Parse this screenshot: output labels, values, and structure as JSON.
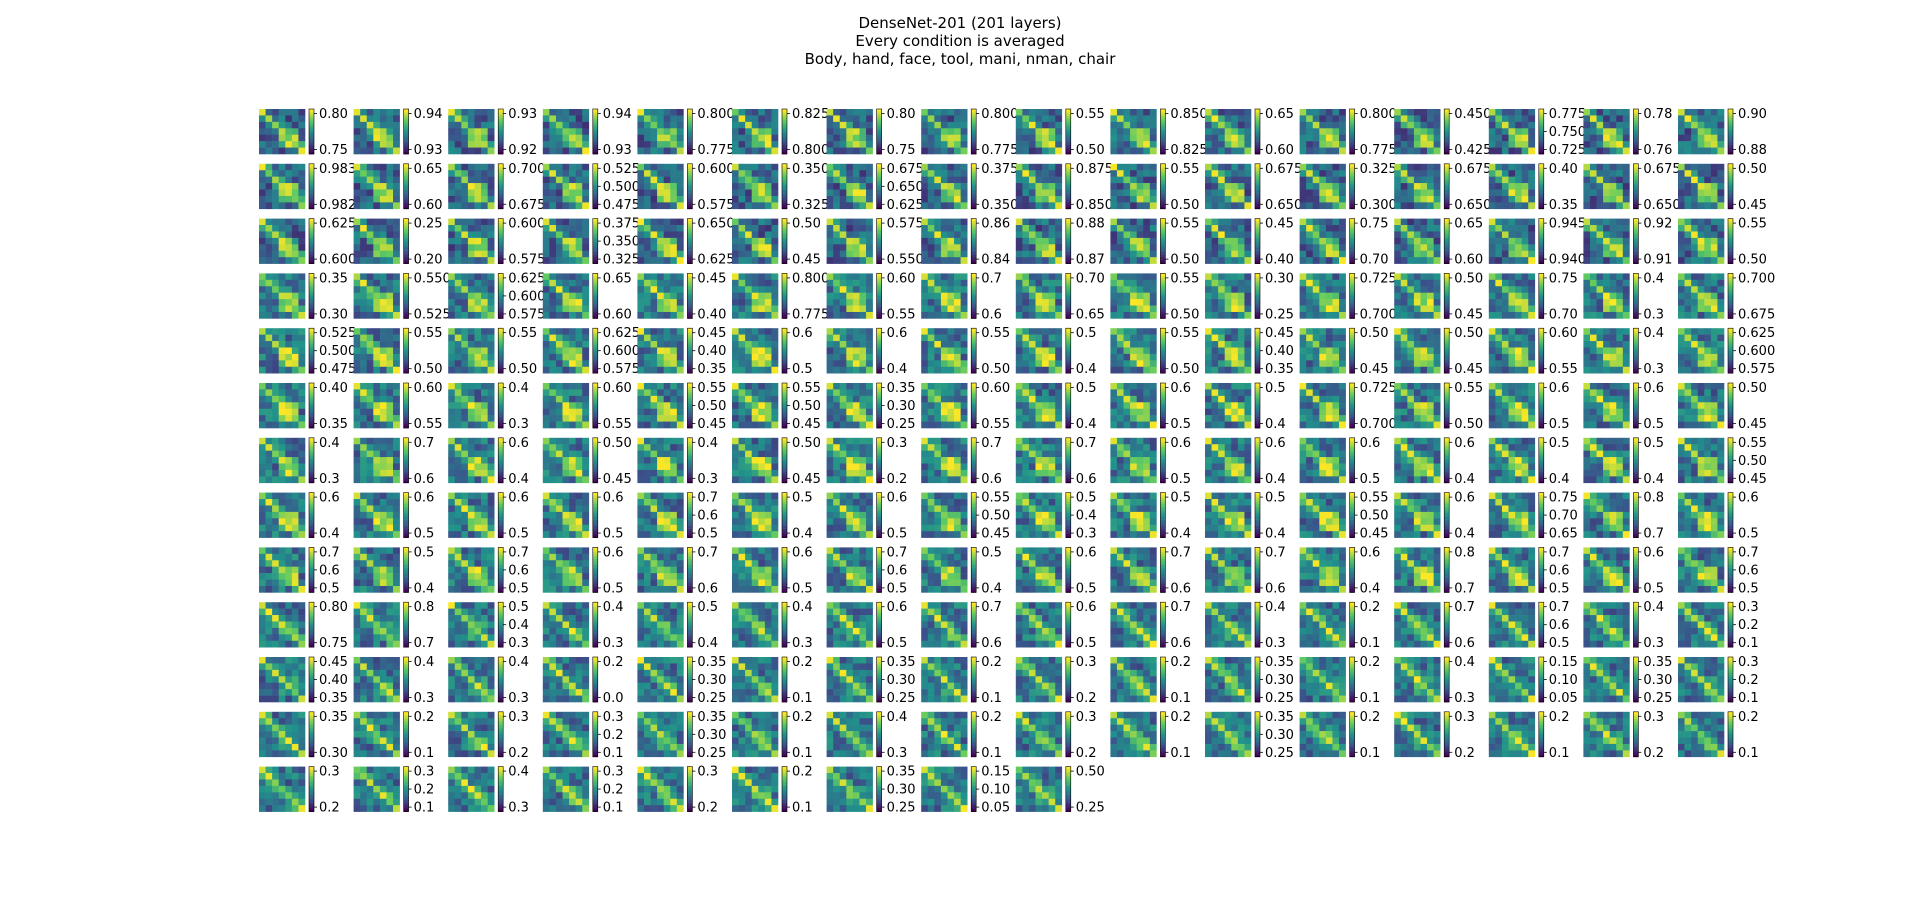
{
  "title_lines": [
    "DenseNet-201 (201 layers)",
    "Every condition is averaged",
    "Body, hand, face, tool, mani, nman, chair"
  ],
  "chart_data": {
    "type": "heatmap",
    "description_counts": {
      "rows": 13,
      "cols": 16,
      "panels": 201
    },
    "matrix_size": 7,
    "conditions": [
      "Body",
      "hand",
      "face",
      "tool",
      "mani",
      "nman",
      "chair"
    ],
    "colormap": [
      "#440154",
      "#3b528b",
      "#21918c",
      "#5ec962",
      "#fde725"
    ],
    "colorbar_ticks": [
      [
        [
          "0.80",
          "0.75"
        ],
        [
          "0.94",
          "0.93"
        ],
        [
          "0.93",
          "0.92"
        ],
        [
          "0.94",
          "0.93"
        ],
        [
          "0.800",
          "0.775"
        ],
        [
          "0.825",
          "0.800"
        ],
        [
          "0.80",
          "0.75"
        ],
        [
          "0.800",
          "0.775"
        ],
        [
          "0.55",
          "0.50"
        ],
        [
          "0.850",
          "0.825"
        ],
        [
          "0.65",
          "0.60"
        ],
        [
          "0.800",
          "0.775"
        ],
        [
          "0.450",
          "0.425"
        ],
        [
          "0.775",
          "0.750",
          "0.725"
        ],
        [
          "0.78",
          "0.76"
        ],
        [
          "0.90",
          "0.88"
        ]
      ],
      [
        [
          "0.983",
          "0.982"
        ],
        [
          "0.65",
          "0.60"
        ],
        [
          "0.700",
          "0.675"
        ],
        [
          "0.525",
          "0.500",
          "0.475"
        ],
        [
          "0.600",
          "0.575"
        ],
        [
          "0.350",
          "0.325"
        ],
        [
          "0.675",
          "0.650",
          "0.625"
        ],
        [
          "0.375",
          "0.350"
        ],
        [
          "0.875",
          "0.850"
        ],
        [
          "0.55",
          "0.50"
        ],
        [
          "0.675",
          "0.650"
        ],
        [
          "0.325",
          "0.300"
        ],
        [
          "0.675",
          "0.650"
        ],
        [
          "0.40",
          "0.35"
        ],
        [
          "0.675",
          "0.650"
        ],
        [
          "0.50",
          "0.45"
        ]
      ],
      [
        [
          "0.625",
          "0.600"
        ],
        [
          "0.25",
          "0.20"
        ],
        [
          "0.600",
          "0.575"
        ],
        [
          "0.375",
          "0.350",
          "0.325"
        ],
        [
          "0.650",
          "0.625"
        ],
        [
          "0.50",
          "0.45"
        ],
        [
          "0.575",
          "0.550"
        ],
        [
          "0.86",
          "0.84"
        ],
        [
          "0.88",
          "0.87"
        ],
        [
          "0.55",
          "0.50"
        ],
        [
          "0.45",
          "0.40"
        ],
        [
          "0.75",
          "0.70"
        ],
        [
          "0.65",
          "0.60"
        ],
        [
          "0.945",
          "0.940"
        ],
        [
          "0.92",
          "0.91"
        ],
        [
          "0.55",
          "0.50"
        ]
      ],
      [
        [
          "0.35",
          "0.30"
        ],
        [
          "0.550",
          "0.525"
        ],
        [
          "0.625",
          "0.600",
          "0.575"
        ],
        [
          "0.65",
          "0.60"
        ],
        [
          "0.45",
          "0.40"
        ],
        [
          "0.800",
          "0.775"
        ],
        [
          "0.60",
          "0.55"
        ],
        [
          "0.7",
          "0.6"
        ],
        [
          "0.70",
          "0.65"
        ],
        [
          "0.55",
          "0.50"
        ],
        [
          "0.30",
          "0.25"
        ],
        [
          "0.725",
          "0.700"
        ],
        [
          "0.50",
          "0.45"
        ],
        [
          "0.75",
          "0.70"
        ],
        [
          "0.4",
          "0.3"
        ],
        [
          "0.700",
          "0.675"
        ]
      ],
      [
        [
          "0.525",
          "0.500",
          "0.475"
        ],
        [
          "0.55",
          "0.50"
        ],
        [
          "0.55",
          "0.50"
        ],
        [
          "0.625",
          "0.600",
          "0.575"
        ],
        [
          "0.45",
          "0.40",
          "0.35"
        ],
        [
          "0.6",
          "0.5"
        ],
        [
          "0.6",
          "0.4"
        ],
        [
          "0.55",
          "0.50"
        ],
        [
          "0.5",
          "0.4"
        ],
        [
          "0.55",
          "0.50"
        ],
        [
          "0.45",
          "0.40",
          "0.35"
        ],
        [
          "0.50",
          "0.45"
        ],
        [
          "0.50",
          "0.45"
        ],
        [
          "0.60",
          "0.55"
        ],
        [
          "0.4",
          "0.3"
        ],
        [
          "0.625",
          "0.600",
          "0.575"
        ]
      ],
      [
        [
          "0.40",
          "0.35"
        ],
        [
          "0.60",
          "0.55"
        ],
        [
          "0.4",
          "0.3"
        ],
        [
          "0.60",
          "0.55"
        ],
        [
          "0.55",
          "0.50",
          "0.45"
        ],
        [
          "0.55",
          "0.50",
          "0.45"
        ],
        [
          "0.35",
          "0.30",
          "0.25"
        ],
        [
          "0.60",
          "0.55"
        ],
        [
          "0.5",
          "0.4"
        ],
        [
          "0.6",
          "0.5"
        ],
        [
          "0.5",
          "0.4"
        ],
        [
          "0.725",
          "0.700"
        ],
        [
          "0.55",
          "0.50"
        ],
        [
          "0.6",
          "0.5"
        ],
        [
          "0.6",
          "0.5"
        ],
        [
          "0.50",
          "0.45"
        ]
      ],
      [
        [
          "0.4",
          "0.3"
        ],
        [
          "0.7",
          "0.6"
        ],
        [
          "0.6",
          "0.4"
        ],
        [
          "0.50",
          "0.45"
        ],
        [
          "0.4",
          "0.3"
        ],
        [
          "0.50",
          "0.45"
        ],
        [
          "0.3",
          "0.2"
        ],
        [
          "0.7",
          "0.6"
        ],
        [
          "0.7",
          "0.6"
        ],
        [
          "0.6",
          "0.5"
        ],
        [
          "0.6",
          "0.4"
        ],
        [
          "0.6",
          "0.5"
        ],
        [
          "0.6",
          "0.4"
        ],
        [
          "0.5",
          "0.4"
        ],
        [
          "0.5",
          "0.4"
        ],
        [
          "0.55",
          "0.50",
          "0.45"
        ]
      ],
      [
        [
          "0.6",
          "0.4"
        ],
        [
          "0.6",
          "0.5"
        ],
        [
          "0.6",
          "0.5"
        ],
        [
          "0.6",
          "0.5"
        ],
        [
          "0.7",
          "0.6",
          "0.5"
        ],
        [
          "0.5",
          "0.4"
        ],
        [
          "0.6",
          "0.5"
        ],
        [
          "0.55",
          "0.50",
          "0.45"
        ],
        [
          "0.5",
          "0.4",
          "0.3"
        ],
        [
          "0.5",
          "0.4"
        ],
        [
          "0.5",
          "0.4"
        ],
        [
          "0.55",
          "0.50",
          "0.45"
        ],
        [
          "0.6",
          "0.4"
        ],
        [
          "0.75",
          "0.70",
          "0.65"
        ],
        [
          "0.8",
          "0.7"
        ],
        [
          "0.6",
          "0.5"
        ]
      ],
      [
        [
          "0.7",
          "0.6",
          "0.5"
        ],
        [
          "0.5",
          "0.4"
        ],
        [
          "0.7",
          "0.6",
          "0.5"
        ],
        [
          "0.6",
          "0.5"
        ],
        [
          "0.7",
          "0.6"
        ],
        [
          "0.6",
          "0.5"
        ],
        [
          "0.7",
          "0.6",
          "0.5"
        ],
        [
          "0.5",
          "0.4"
        ],
        [
          "0.6",
          "0.5"
        ],
        [
          "0.7",
          "0.6"
        ],
        [
          "0.7",
          "0.6"
        ],
        [
          "0.6",
          "0.4"
        ],
        [
          "0.8",
          "0.7"
        ],
        [
          "0.7",
          "0.6",
          "0.5"
        ],
        [
          "0.6",
          "0.5"
        ],
        [
          "0.7",
          "0.6",
          "0.5"
        ]
      ],
      [
        [
          "0.80",
          "0.75"
        ],
        [
          "0.8",
          "0.7"
        ],
        [
          "0.5",
          "0.4",
          "0.3"
        ],
        [
          "0.4",
          "0.3"
        ],
        [
          "0.5",
          "0.4"
        ],
        [
          "0.4",
          "0.3"
        ],
        [
          "0.6",
          "0.5"
        ],
        [
          "0.7",
          "0.6"
        ],
        [
          "0.6",
          "0.5"
        ],
        [
          "0.7",
          "0.6"
        ],
        [
          "0.4",
          "0.3"
        ],
        [
          "0.2",
          "0.1"
        ],
        [
          "0.7",
          "0.6"
        ],
        [
          "0.7",
          "0.6",
          "0.5"
        ],
        [
          "0.4",
          "0.3"
        ],
        [
          "0.3",
          "0.2",
          "0.1"
        ]
      ],
      [
        [
          "0.45",
          "0.40",
          "0.35"
        ],
        [
          "0.4",
          "0.3"
        ],
        [
          "0.4",
          "0.3"
        ],
        [
          "0.2",
          "0.0"
        ],
        [
          "0.35",
          "0.30",
          "0.25"
        ],
        [
          "0.2",
          "0.1"
        ],
        [
          "0.35",
          "0.30",
          "0.25"
        ],
        [
          "0.2",
          "0.1"
        ],
        [
          "0.3",
          "0.2"
        ],
        [
          "0.2",
          "0.1"
        ],
        [
          "0.35",
          "0.30",
          "0.25"
        ],
        [
          "0.2",
          "0.1"
        ],
        [
          "0.4",
          "0.3"
        ],
        [
          "0.15",
          "0.10",
          "0.05"
        ],
        [
          "0.35",
          "0.30",
          "0.25"
        ],
        [
          "0.3",
          "0.2",
          "0.1"
        ]
      ],
      [
        [
          "0.35",
          "0.30"
        ],
        [
          "0.2",
          "0.1"
        ],
        [
          "0.3",
          "0.2"
        ],
        [
          "0.3",
          "0.2",
          "0.1"
        ],
        [
          "0.35",
          "0.30",
          "0.25"
        ],
        [
          "0.2",
          "0.1"
        ],
        [
          "0.4",
          "0.3"
        ],
        [
          "0.2",
          "0.1"
        ],
        [
          "0.3",
          "0.2"
        ],
        [
          "0.2",
          "0.1"
        ],
        [
          "0.35",
          "0.30",
          "0.25"
        ],
        [
          "0.2",
          "0.1"
        ],
        [
          "0.3",
          "0.2"
        ],
        [
          "0.2",
          "0.1"
        ],
        [
          "0.3",
          "0.2"
        ],
        [
          "0.2",
          "0.1"
        ]
      ],
      [
        [
          "0.3",
          "0.2"
        ],
        [
          "0.3",
          "0.2",
          "0.1"
        ],
        [
          "0.4",
          "0.3"
        ],
        [
          "0.3",
          "0.2",
          "0.1"
        ],
        [
          "0.3",
          "0.2"
        ],
        [
          "0.2",
          "0.1"
        ],
        [
          "0.35",
          "0.30",
          "0.25"
        ],
        [
          "0.15",
          "0.10",
          "0.05"
        ],
        [
          "0.50",
          "0.25"
        ]
      ]
    ]
  }
}
